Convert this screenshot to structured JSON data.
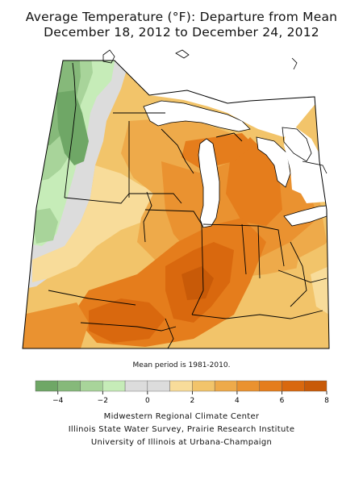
{
  "map": {
    "title_line1": "Average Temperature (°F): Departure from Mean",
    "title_line2": "December 18, 2012 to December 24, 2012",
    "note": "Mean period is 1981-2010."
  },
  "legend": {
    "bins": [
      {
        "from": -5,
        "to": -4,
        "color": "#6fa766"
      },
      {
        "from": -4,
        "to": -3,
        "color": "#86b97a"
      },
      {
        "from": -3,
        "to": -2,
        "color": "#a8d49a"
      },
      {
        "from": -2,
        "to": -1,
        "color": "#c6ecb8"
      },
      {
        "from": -1,
        "to": 0,
        "color": "#dcdcdc"
      },
      {
        "from": 0,
        "to": 1,
        "color": "#dcdcdc"
      },
      {
        "from": 1,
        "to": 2,
        "color": "#f8dc9a"
      },
      {
        "from": 2,
        "to": 3,
        "color": "#f2c46a"
      },
      {
        "from": 3,
        "to": 4,
        "color": "#eeaa4a"
      },
      {
        "from": 4,
        "to": 5,
        "color": "#ea9230"
      },
      {
        "from": 5,
        "to": 6,
        "color": "#e57d1c"
      },
      {
        "from": 6,
        "to": 7,
        "color": "#d9680e"
      },
      {
        "from": 7,
        "to": 8,
        "color": "#c85a08"
      }
    ],
    "tick_labels": [
      {
        "value": -4,
        "label": "−4"
      },
      {
        "value": -2,
        "label": "−2"
      },
      {
        "value": 0,
        "label": "0"
      },
      {
        "value": 2,
        "label": "2"
      },
      {
        "value": 4,
        "label": "4"
      },
      {
        "value": 6,
        "label": "6"
      },
      {
        "value": 8,
        "label": "8"
      }
    ]
  },
  "credits": {
    "line1": "Midwestern Regional Climate Center",
    "line2": "Illinois State Water Survey, Prairie Research Institute",
    "line3": "University of Illinois at Urbana-Champaign"
  },
  "colors": {
    "lake": "#ffffff",
    "border": "#000000"
  }
}
